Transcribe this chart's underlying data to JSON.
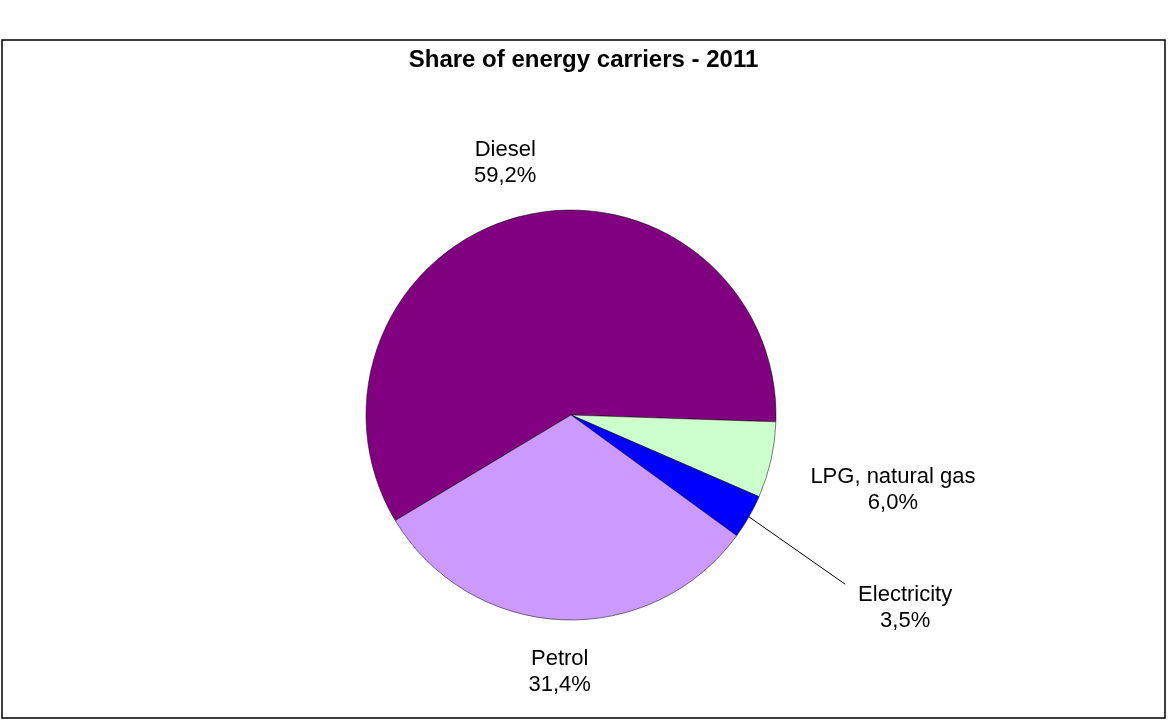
{
  "chart_data": {
    "type": "pie",
    "title": "Share of energy carriers - 2011",
    "categories": [
      "Diesel",
      "LPG, natural gas",
      "Electricity",
      "Petrol"
    ],
    "values": [
      59.2,
      6.0,
      3.5,
      31.4
    ],
    "colors": [
      "#800080",
      "#ccffcc",
      "#0000ff",
      "#cc99ff"
    ],
    "value_labels": [
      "59,2%",
      "6,0%",
      "3,5%",
      "31,4%"
    ]
  }
}
